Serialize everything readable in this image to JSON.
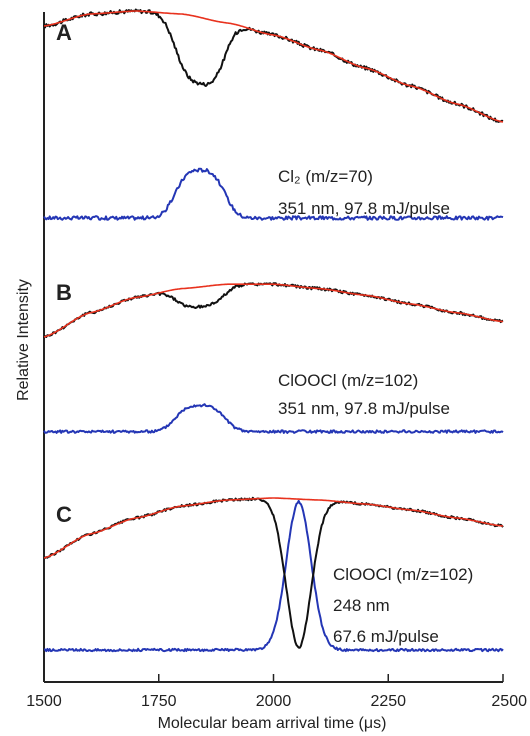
{
  "chart_data": {
    "type": "line",
    "xlabel": "Molecular beam arrival time (μs)",
    "ylabel": "Relative Intensity",
    "xlim": [
      1500,
      2500
    ],
    "x_ticks": [
      "1500",
      "1750",
      "2000",
      "2250",
      "2500"
    ],
    "y_ticks": [],
    "grid": false,
    "colors": {
      "fit": "#e8321e",
      "signal": "#111111",
      "depletion": "#2436b5"
    },
    "panels": [
      {
        "label": "A",
        "annotation": {
          "species": "Cl₂ (m/z=70)",
          "line1": "351 nm, 97.8 mJ/pulse",
          "line2": "",
          "line3": ""
        },
        "baseline_curve": {
          "x": [
            1500,
            1600,
            1700,
            1800,
            1900,
            2000,
            2100,
            2200,
            2300,
            2400,
            2500
          ],
          "y": [
            0.8,
            0.84,
            0.85,
            0.84,
            0.81,
            0.77,
            0.72,
            0.66,
            0.6,
            0.54,
            0.48
          ]
        },
        "dip": {
          "center": 1840,
          "width": 62,
          "depth": 0.22,
          "exponent": 3
        },
        "depletion_peak": {
          "center": 1840,
          "width": 62,
          "height": 0.16,
          "exponent": 3,
          "baseline": 0.16
        }
      },
      {
        "label": "B",
        "annotation": {
          "species": "ClOOCl (m/z=102)",
          "line1": "351 nm, 97.8 mJ/pulse",
          "line2": "",
          "line3": ""
        },
        "baseline_curve": {
          "x": [
            1500,
            1600,
            1700,
            1800,
            1900,
            2000,
            2100,
            2200,
            2300,
            2400,
            2500
          ],
          "y": [
            0.55,
            0.66,
            0.73,
            0.77,
            0.79,
            0.79,
            0.77,
            0.74,
            0.7,
            0.66,
            0.62
          ]
        },
        "dip": {
          "center": 1840,
          "width": 62,
          "depth": 0.09,
          "exponent": 3
        },
        "depletion_peak": {
          "center": 1840,
          "width": 62,
          "height": 0.12,
          "exponent": 3,
          "baseline": 0.12
        }
      },
      {
        "label": "C",
        "annotation": {
          "species": "ClOOCl (m/z=102)",
          "line1": "248 nm",
          "line2": "67.6 mJ/pulse",
          "line3": ""
        },
        "baseline_curve": {
          "x": [
            1500,
            1600,
            1700,
            1800,
            1900,
            2000,
            2100,
            2200,
            2300,
            2400,
            2500
          ],
          "y": [
            0.56,
            0.68,
            0.76,
            0.82,
            0.85,
            0.86,
            0.85,
            0.83,
            0.8,
            0.76,
            0.72
          ]
        },
        "dip": {
          "center": 2055,
          "width": 38,
          "depth": 0.74,
          "exponent": 2
        },
        "depletion_peak": {
          "center": 2055,
          "width": 38,
          "height": 0.74,
          "exponent": 2,
          "baseline": 0.1
        }
      }
    ]
  }
}
